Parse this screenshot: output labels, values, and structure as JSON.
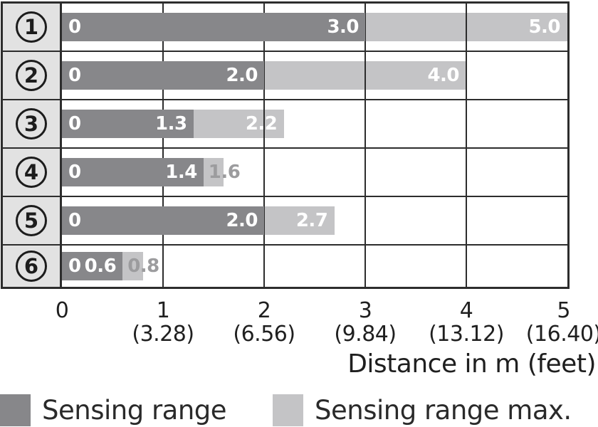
{
  "chart_data": {
    "type": "bar",
    "orientation": "horizontal",
    "title": "",
    "xlabel": "Distance in m (feet)",
    "ylabel": "",
    "xlim": [
      0,
      5
    ],
    "grid": true,
    "legend_position": "bottom",
    "categories": [
      "1",
      "2",
      "3",
      "4",
      "5",
      "6"
    ],
    "categories_style": "circled-numbers",
    "series": [
      {
        "name": "Sensing range",
        "color": "#87878a",
        "values": [
          3.0,
          2.0,
          1.3,
          1.4,
          2.0,
          0.6
        ]
      },
      {
        "name": "Sensing range max.",
        "color": "#c4c4c6",
        "values": [
          5.0,
          4.0,
          2.2,
          1.6,
          2.7,
          0.8
        ]
      }
    ],
    "x_ticks": [
      {
        "m": "0",
        "feet": ""
      },
      {
        "m": "1",
        "feet": "(3.28)"
      },
      {
        "m": "2",
        "feet": "(6.56)"
      },
      {
        "m": "3",
        "feet": "(9.84)"
      },
      {
        "m": "4",
        "feet": "(13.12)"
      },
      {
        "m": "5",
        "feet": "(16.40)"
      }
    ],
    "rows": [
      {
        "category": "1",
        "zero_label": "0",
        "sensing": 3.0,
        "sensing_label": "3.0",
        "max": 5.0,
        "max_label": "5.0",
        "max_label_inside": true
      },
      {
        "category": "2",
        "zero_label": "0",
        "sensing": 2.0,
        "sensing_label": "2.0",
        "max": 4.0,
        "max_label": "4.0",
        "max_label_inside": true
      },
      {
        "category": "3",
        "zero_label": "0",
        "sensing": 1.3,
        "sensing_label": "1.3",
        "max": 2.2,
        "max_label": "2.2",
        "max_label_inside": true
      },
      {
        "category": "4",
        "zero_label": "0",
        "sensing": 1.4,
        "sensing_label": "1.4",
        "max": 1.6,
        "max_label": "1.6",
        "max_label_inside": false
      },
      {
        "category": "5",
        "zero_label": "0",
        "sensing": 2.0,
        "sensing_label": "2.0",
        "max": 2.7,
        "max_label": "2.7",
        "max_label_inside": true
      },
      {
        "category": "6",
        "zero_label": "0",
        "sensing": 0.6,
        "sensing_label": "0.6",
        "max": 0.8,
        "max_label": "0.8",
        "max_label_inside": false
      }
    ],
    "legend": [
      {
        "label": "Sensing range",
        "color": "#87878a"
      },
      {
        "label": "Sensing range max.",
        "color": "#c4c4c6"
      }
    ],
    "colors": {
      "category_cell_bg": "#e2e2e2",
      "grid_line": "#2d2d2d",
      "bar_label_text": "#ffffff",
      "outside_label_text": "#9c9c9e",
      "axis_text": "#1f1f1f"
    }
  }
}
